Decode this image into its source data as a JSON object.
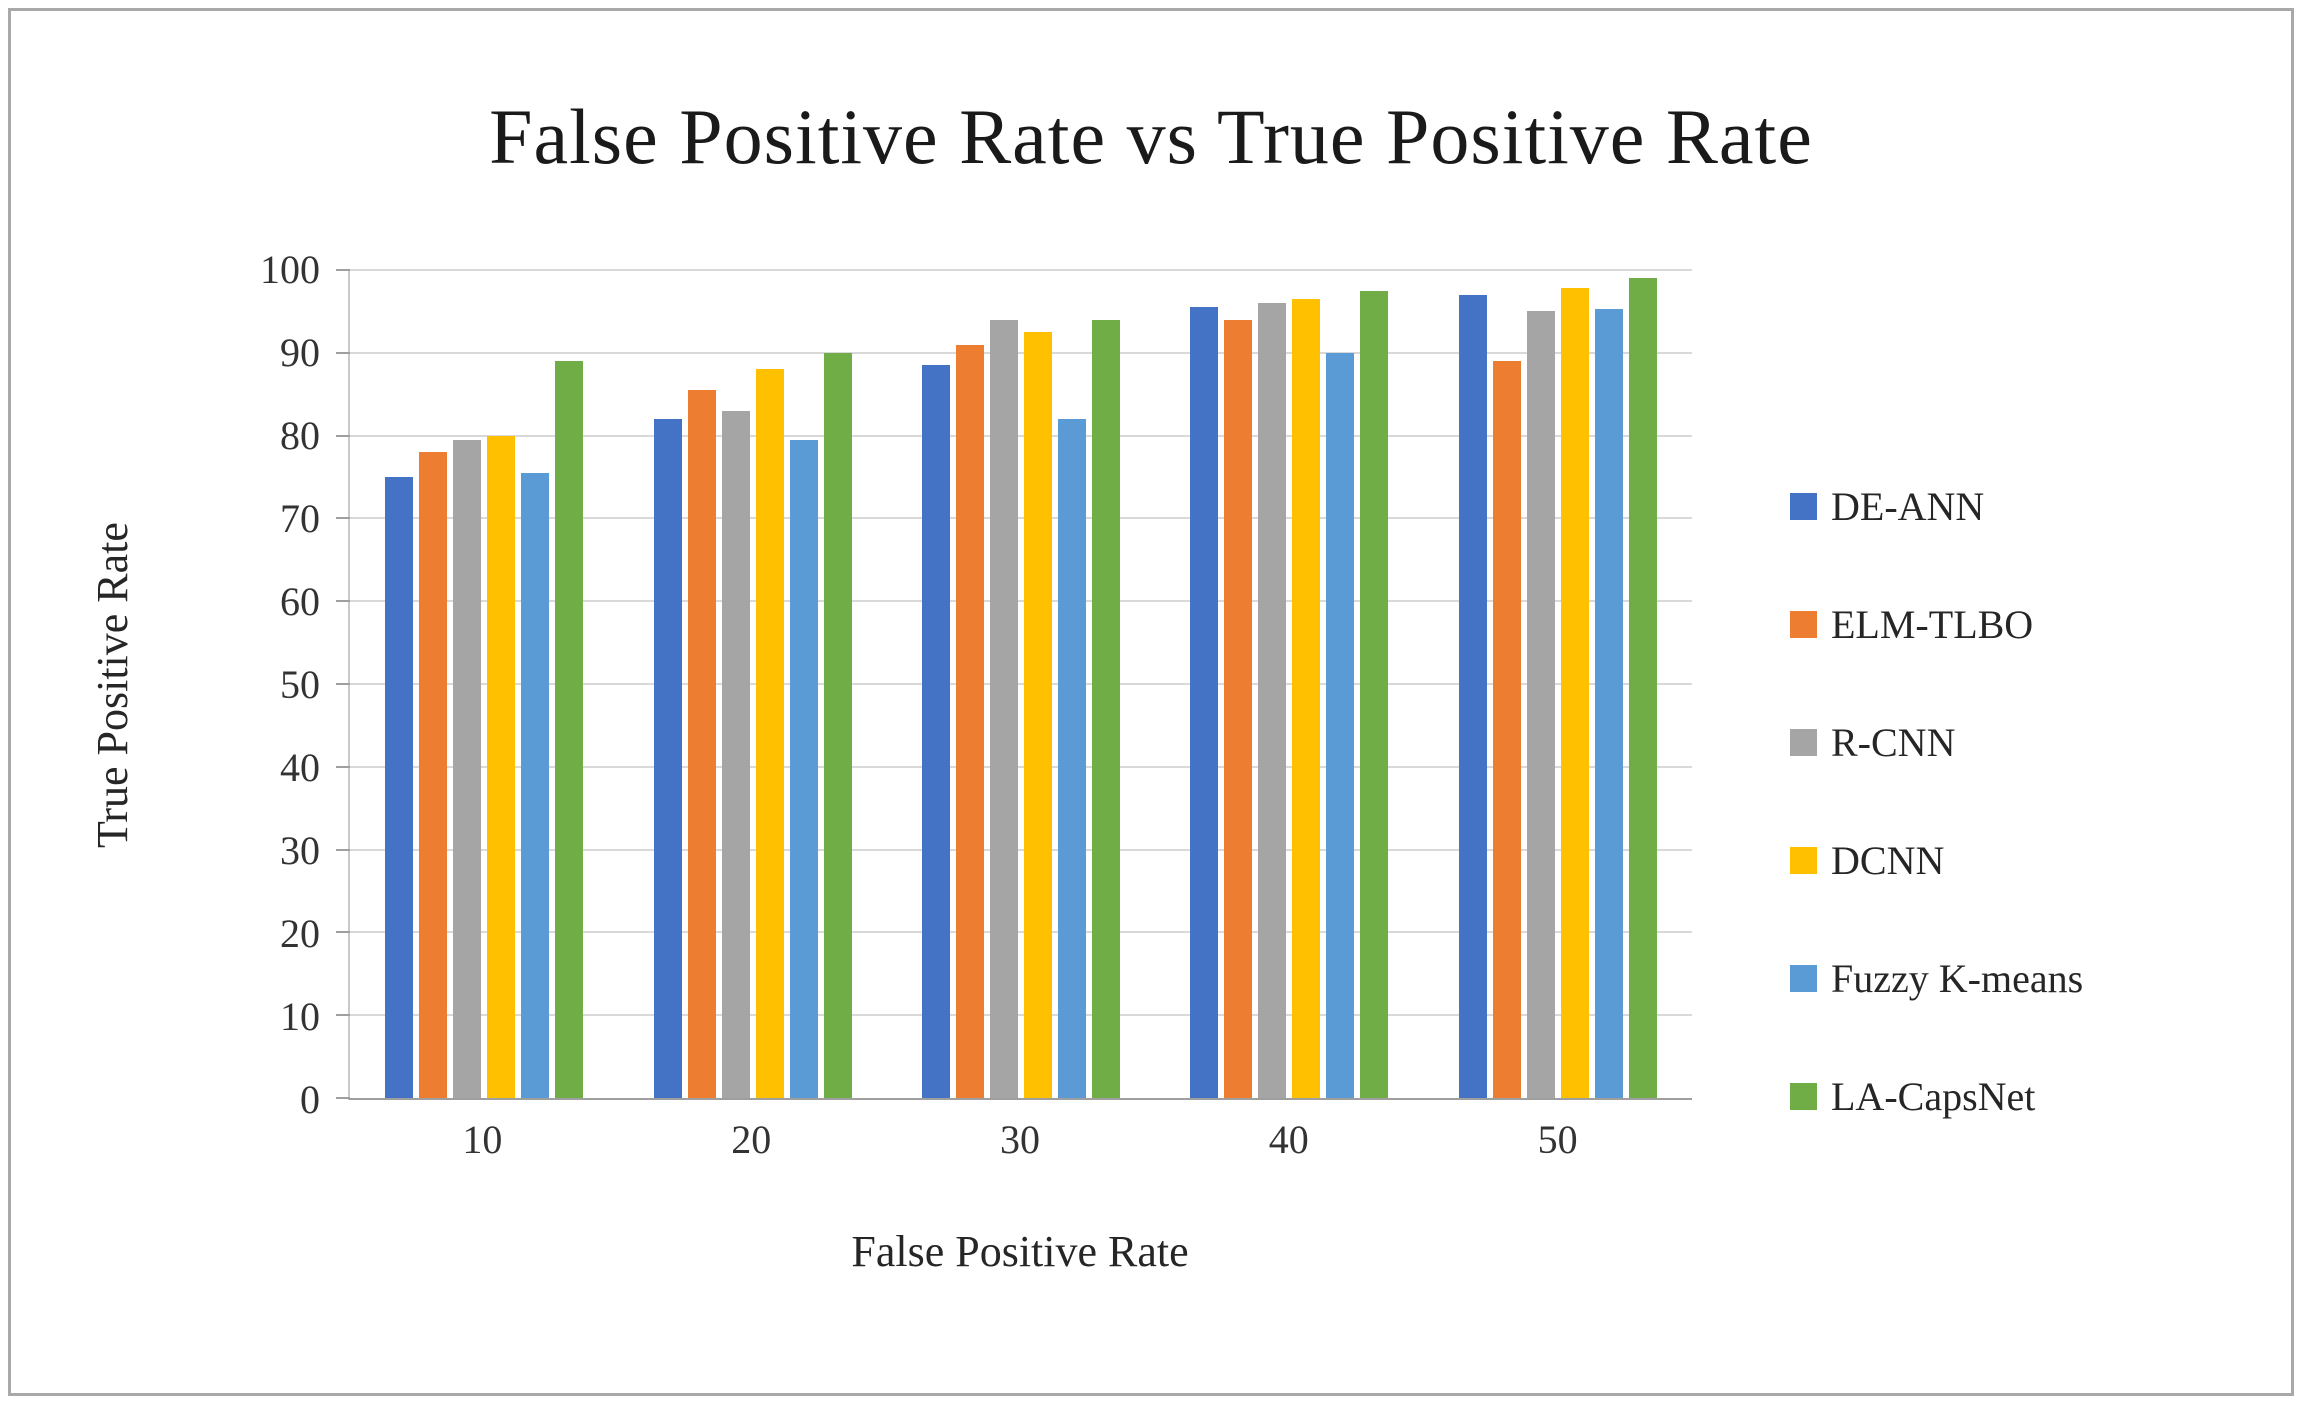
{
  "chart_data": {
    "type": "bar",
    "title": "False Positive Rate vs True Positive Rate",
    "xlabel": "False Positive Rate",
    "ylabel": "True Positive Rate",
    "ylim": [
      0,
      100
    ],
    "ytick_step": 10,
    "grid": true,
    "legend_position": "right",
    "categories": [
      "10",
      "20",
      "30",
      "40",
      "50"
    ],
    "series": [
      {
        "name": "DE-ANN",
        "color": "#4472C4",
        "values": [
          75,
          82,
          88.5,
          95.5,
          97
        ]
      },
      {
        "name": "ELM-TLBO",
        "color": "#ED7D31",
        "values": [
          78,
          85.5,
          91,
          94,
          89
        ]
      },
      {
        "name": "R-CNN",
        "color": "#A5A5A5",
        "values": [
          79.5,
          83,
          94,
          96,
          95
        ]
      },
      {
        "name": "DCNN",
        "color": "#FFC000",
        "values": [
          80,
          88,
          92.5,
          96.5,
          97.8
        ]
      },
      {
        "name": "Fuzzy K-means",
        "color": "#5B9BD5",
        "values": [
          75.5,
          79.5,
          82,
          90,
          95.3
        ]
      },
      {
        "name": "LA-CapsNet",
        "color": "#70AD47",
        "values": [
          89,
          90,
          94,
          97.5,
          99
        ]
      }
    ]
  }
}
